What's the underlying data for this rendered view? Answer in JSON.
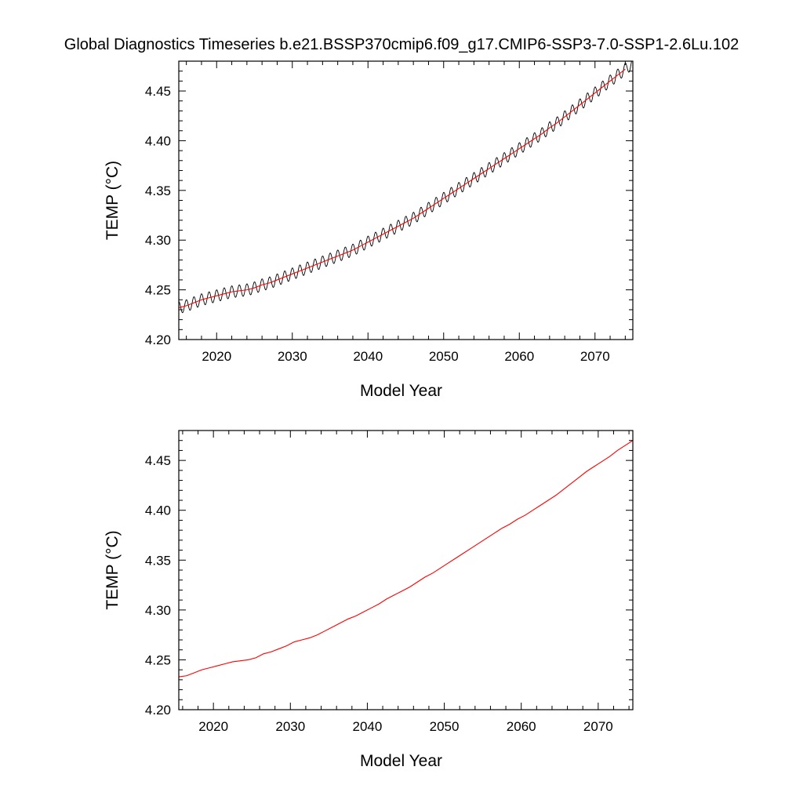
{
  "title": "Global Diagnostics Timeseries b.e21.BSSP370cmip6.f09_g17.CMIP6-SSP3-7.0-SSP1-2.6Lu.102",
  "colors": {
    "raw_line": "#000000",
    "smooth_line": "#ff0000",
    "axis": "#000000"
  },
  "chart_data": [
    {
      "type": "line",
      "title": "",
      "xlabel": "Model Year",
      "ylabel": "TEMP (°C)",
      "xlim": [
        2015,
        2075
      ],
      "ylim": [
        4.2,
        4.48
      ],
      "xticks": [
        2020,
        2030,
        2040,
        2050,
        2060,
        2070
      ],
      "xtick_labels": [
        "2020",
        "2030",
        "2040",
        "2050",
        "2060",
        "2070"
      ],
      "yticks": [
        4.2,
        4.25,
        4.3,
        4.35,
        4.4,
        4.45
      ],
      "ytick_labels": [
        "4.20",
        "4.25",
        "4.30",
        "4.35",
        "4.40",
        "4.45"
      ],
      "grid": false,
      "legend": "none",
      "series": [
        {
          "style": "monthly-oscillating",
          "color": "#000000",
          "seasonal_amplitude": 0.006,
          "x": [
            2015,
            2016,
            2017,
            2018,
            2019,
            2020,
            2021,
            2022,
            2023,
            2024,
            2025,
            2026,
            2027,
            2028,
            2029,
            2030,
            2031,
            2032,
            2033,
            2034,
            2035,
            2036,
            2037,
            2038,
            2039,
            2040,
            2041,
            2042,
            2043,
            2044,
            2045,
            2046,
            2047,
            2048,
            2049,
            2050,
            2051,
            2052,
            2053,
            2054,
            2055,
            2056,
            2057,
            2058,
            2059,
            2060,
            2061,
            2062,
            2063,
            2064,
            2065,
            2066,
            2067,
            2068,
            2069,
            2070,
            2071,
            2072,
            2073,
            2074,
            2075
          ],
          "y": [
            4.232,
            4.234,
            4.237,
            4.24,
            4.242,
            4.244,
            4.246,
            4.248,
            4.249,
            4.25,
            4.252,
            4.255,
            4.257,
            4.26,
            4.263,
            4.266,
            4.269,
            4.272,
            4.275,
            4.278,
            4.281,
            4.284,
            4.287,
            4.29,
            4.294,
            4.298,
            4.302,
            4.306,
            4.31,
            4.314,
            4.318,
            4.322,
            4.327,
            4.332,
            4.337,
            4.342,
            4.347,
            4.352,
            4.357,
            4.362,
            4.367,
            4.372,
            4.377,
            4.382,
            4.387,
            4.392,
            4.397,
            4.402,
            4.407,
            4.413,
            4.418,
            4.424,
            4.43,
            4.436,
            4.442,
            4.448,
            4.454,
            4.46,
            4.466,
            4.472,
            4.478
          ]
        },
        {
          "style": "smoothed",
          "color": "#ff0000",
          "x": [
            2015,
            2016,
            2017,
            2018,
            2019,
            2020,
            2021,
            2022,
            2023,
            2024,
            2025,
            2026,
            2027,
            2028,
            2029,
            2030,
            2031,
            2032,
            2033,
            2034,
            2035,
            2036,
            2037,
            2038,
            2039,
            2040,
            2041,
            2042,
            2043,
            2044,
            2045,
            2046,
            2047,
            2048,
            2049,
            2050,
            2051,
            2052,
            2053,
            2054,
            2055,
            2056,
            2057,
            2058,
            2059,
            2060,
            2061,
            2062,
            2063,
            2064,
            2065,
            2066,
            2067,
            2068,
            2069,
            2070,
            2071,
            2072,
            2073,
            2074
          ],
          "y": [
            4.232,
            4.234,
            4.237,
            4.24,
            4.242,
            4.244,
            4.246,
            4.248,
            4.249,
            4.25,
            4.252,
            4.255,
            4.257,
            4.26,
            4.263,
            4.266,
            4.269,
            4.272,
            4.275,
            4.278,
            4.281,
            4.284,
            4.287,
            4.29,
            4.294,
            4.298,
            4.302,
            4.306,
            4.31,
            4.314,
            4.318,
            4.322,
            4.327,
            4.332,
            4.337,
            4.342,
            4.347,
            4.352,
            4.357,
            4.362,
            4.367,
            4.372,
            4.377,
            4.382,
            4.387,
            4.392,
            4.397,
            4.402,
            4.407,
            4.413,
            4.418,
            4.424,
            4.43,
            4.436,
            4.442,
            4.448,
            4.454,
            4.46,
            4.466,
            4.472
          ]
        }
      ]
    },
    {
      "type": "line",
      "title": "",
      "xlabel": "Model Year",
      "ylabel": "TEMP (°C)",
      "xlim": [
        2015.5,
        2074.5
      ],
      "ylim": [
        4.2,
        4.48
      ],
      "xticks": [
        2020,
        2030,
        2040,
        2050,
        2060,
        2070
      ],
      "xtick_labels": [
        "2020",
        "2030",
        "2040",
        "2050",
        "2060",
        "2070"
      ],
      "yticks": [
        4.2,
        4.25,
        4.3,
        4.35,
        4.4,
        4.45
      ],
      "ytick_labels": [
        "4.20",
        "4.25",
        "4.30",
        "4.35",
        "4.40",
        "4.45"
      ],
      "grid": false,
      "legend": "none",
      "series": [
        {
          "style": "smoothed",
          "color": "#ff0000",
          "x": [
            2015.5,
            2016.5,
            2017.5,
            2018.5,
            2019.5,
            2020.5,
            2021.5,
            2022.5,
            2023.5,
            2024.5,
            2025.5,
            2026.5,
            2027.5,
            2028.5,
            2029.5,
            2030.5,
            2031.5,
            2032.5,
            2033.5,
            2034.5,
            2035.5,
            2036.5,
            2037.5,
            2038.5,
            2039.5,
            2040.5,
            2041.5,
            2042.5,
            2043.5,
            2044.5,
            2045.5,
            2046.5,
            2047.5,
            2048.5,
            2049.5,
            2050.5,
            2051.5,
            2052.5,
            2053.5,
            2054.5,
            2055.5,
            2056.5,
            2057.5,
            2058.5,
            2059.5,
            2060.5,
            2061.5,
            2062.5,
            2063.5,
            2064.5,
            2065.5,
            2066.5,
            2067.5,
            2068.5,
            2069.5,
            2070.5,
            2071.5,
            2072.5,
            2073.5,
            2074.5
          ],
          "y": [
            4.233,
            4.234,
            4.237,
            4.24,
            4.242,
            4.244,
            4.246,
            4.248,
            4.249,
            4.25,
            4.252,
            4.256,
            4.258,
            4.261,
            4.264,
            4.268,
            4.27,
            4.272,
            4.275,
            4.279,
            4.283,
            4.287,
            4.291,
            4.294,
            4.298,
            4.302,
            4.306,
            4.311,
            4.315,
            4.319,
            4.323,
            4.328,
            4.333,
            4.337,
            4.342,
            4.347,
            4.352,
            4.357,
            4.362,
            4.367,
            4.372,
            4.377,
            4.382,
            4.386,
            4.391,
            4.395,
            4.4,
            4.405,
            4.41,
            4.415,
            4.421,
            4.427,
            4.433,
            4.439,
            4.444,
            4.449,
            4.454,
            4.46,
            4.465,
            4.47
          ]
        }
      ]
    }
  ]
}
